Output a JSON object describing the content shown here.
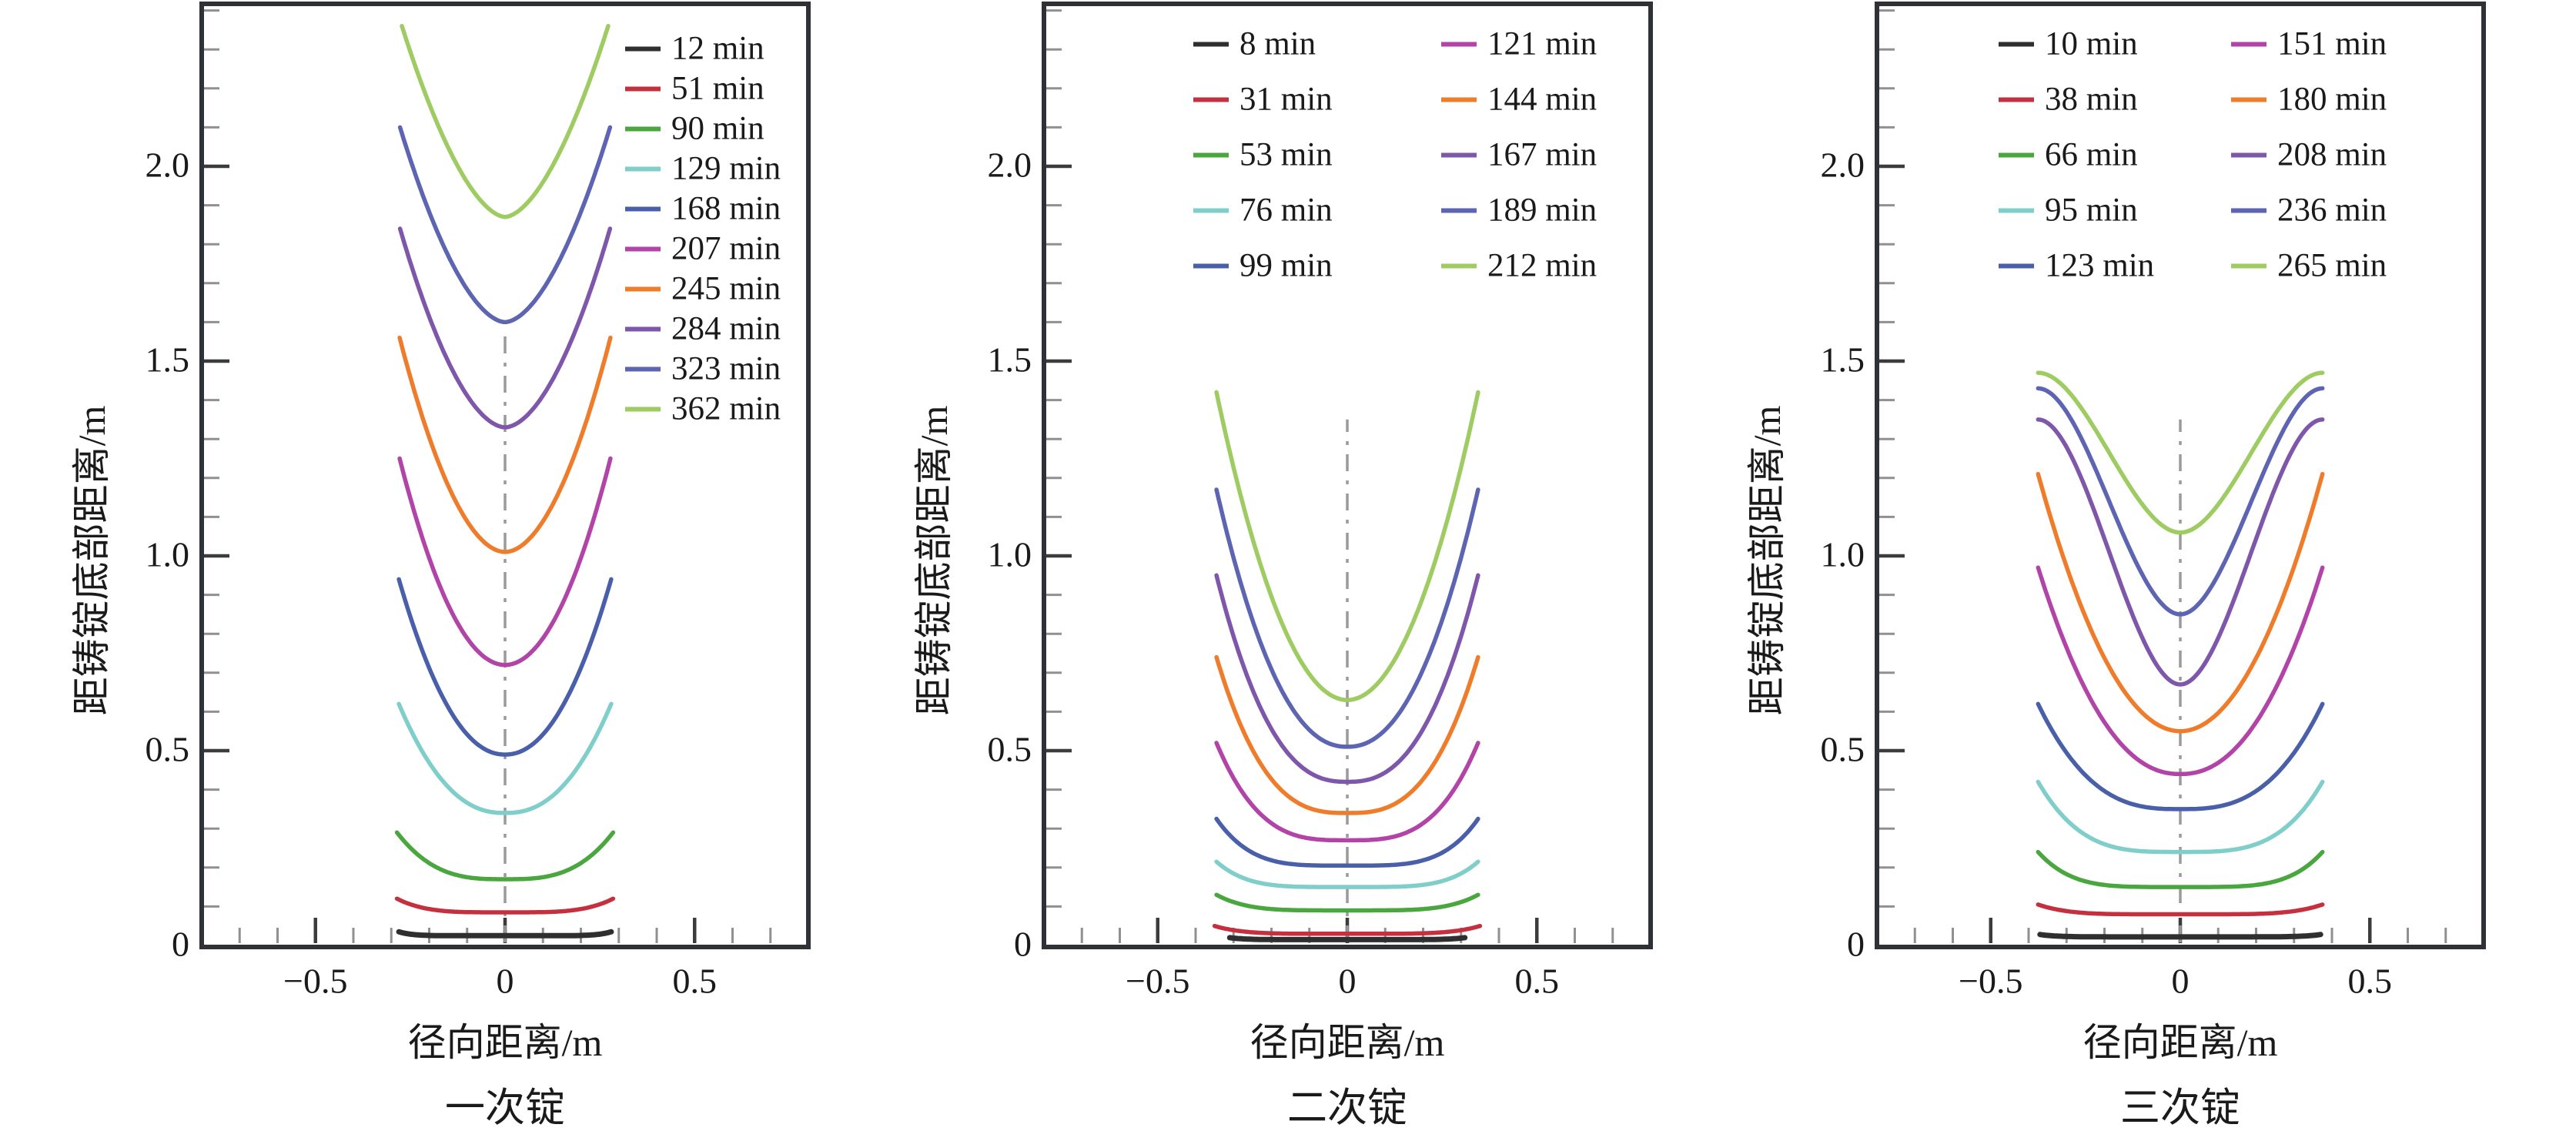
{
  "figure": {
    "background": "#ffffff",
    "frame_color": "#2e3135",
    "major_tick_color": "#3c3c3c",
    "minor_tick_color": "#909090",
    "centerline_color": "#9a9a9a",
    "text_color": "#1a1a1a"
  },
  "chart_data": [
    {
      "type": "line",
      "title": "一次锭",
      "xlabel": "径向距离/m",
      "ylabel": "距铸锭底部距离/m",
      "xlim": [
        -0.8,
        0.8
      ],
      "ylim": [
        0,
        2.42
      ],
      "grid": false,
      "legend_position": "top-right-inside",
      "legend_columns": 1,
      "xticks": {
        "major": [
          -0.5,
          0,
          0.5
        ],
        "labels": [
          "−0.5",
          "0",
          "0.5"
        ],
        "minor_step": 0.1
      },
      "yticks": {
        "major": [
          0,
          0.5,
          1.0,
          1.5,
          2.0
        ],
        "labels": [
          "0",
          "0.5",
          "1.0",
          "1.5",
          "2.0"
        ],
        "minor_step": 0.1
      },
      "centerline": {
        "style": "dash-dot",
        "x": 0,
        "from_m": 0,
        "to_m": 1.57
      },
      "series": [
        {
          "label": "12 min",
          "time_min": 12,
          "color": "#2f2f2f",
          "half_width_m": 0.28,
          "center_height_m": 0.025,
          "edge_height_m": 0.035,
          "shape": "power",
          "shape_exp": 8,
          "line_width": 7
        },
        {
          "label": "51 min",
          "time_min": 51,
          "color": "#c5303e",
          "half_width_m": 0.285,
          "center_height_m": 0.085,
          "edge_height_m": 0.12,
          "shape": "power",
          "shape_exp": 4,
          "line_width": 5.5
        },
        {
          "label": "90 min",
          "time_min": 90,
          "color": "#4aa63f",
          "half_width_m": 0.285,
          "center_height_m": 0.17,
          "edge_height_m": 0.29,
          "shape": "power",
          "shape_exp": 3,
          "line_width": 5.5
        },
        {
          "label": "129 min",
          "time_min": 129,
          "color": "#7fceca",
          "half_width_m": 0.28,
          "center_height_m": 0.34,
          "edge_height_m": 0.62,
          "shape": "power",
          "shape_exp": 2.3,
          "line_width": 5.5
        },
        {
          "label": "168 min",
          "time_min": 168,
          "color": "#4a5fa9",
          "half_width_m": 0.28,
          "center_height_m": 0.49,
          "edge_height_m": 0.94,
          "shape": "power",
          "shape_exp": 2.1,
          "line_width": 5.5
        },
        {
          "label": "207 min",
          "time_min": 207,
          "color": "#b244a8",
          "half_width_m": 0.278,
          "center_height_m": 0.72,
          "edge_height_m": 1.25,
          "shape": "power",
          "shape_exp": 2.0,
          "line_width": 5.5
        },
        {
          "label": "245 min",
          "time_min": 245,
          "color": "#ee7c2b",
          "half_width_m": 0.278,
          "center_height_m": 1.01,
          "edge_height_m": 1.56,
          "shape": "power",
          "shape_exp": 1.9,
          "line_width": 5.5
        },
        {
          "label": "284 min",
          "time_min": 284,
          "color": "#7e57ab",
          "half_width_m": 0.277,
          "center_height_m": 1.33,
          "edge_height_m": 1.84,
          "shape": "power",
          "shape_exp": 1.8,
          "line_width": 5.5
        },
        {
          "label": "323 min",
          "time_min": 323,
          "color": "#5d64b2",
          "half_width_m": 0.277,
          "center_height_m": 1.6,
          "edge_height_m": 2.1,
          "shape": "power",
          "shape_exp": 1.75,
          "line_width": 5.5
        },
        {
          "label": "362 min",
          "time_min": 362,
          "color": "#9ecb62",
          "half_width_m": 0.272,
          "center_height_m": 1.87,
          "edge_height_m": 2.36,
          "shape": "power",
          "shape_exp": 1.7,
          "line_width": 5.5
        }
      ]
    },
    {
      "type": "line",
      "title": "二次锭",
      "xlabel": "径向距离/m",
      "ylabel": "距铸锭底部距离/m",
      "xlim": [
        -0.8,
        0.8
      ],
      "ylim": [
        0,
        2.42
      ],
      "grid": false,
      "legend_position": "top-inside",
      "legend_columns": 2,
      "xticks": {
        "major": [
          -0.5,
          0,
          0.5
        ],
        "labels": [
          "−0.5",
          "0",
          "0.5"
        ],
        "minor_step": 0.1
      },
      "yticks": {
        "major": [
          0,
          0.5,
          1.0,
          1.5,
          2.0
        ],
        "labels": [
          "0",
          "0.5",
          "1.0",
          "1.5",
          "2.0"
        ],
        "minor_step": 0.1
      },
      "centerline": {
        "style": "dash-dot",
        "x": 0,
        "from_m": 0,
        "to_m": 1.35
      },
      "series": [
        {
          "label": "8 min",
          "time_min": 8,
          "color": "#2f2f2f",
          "half_width_m": 0.31,
          "center_height_m": 0.015,
          "edge_height_m": 0.02,
          "shape": "power",
          "shape_exp": 8,
          "line_width": 7
        },
        {
          "label": "31 min",
          "time_min": 31,
          "color": "#c5303e",
          "half_width_m": 0.35,
          "center_height_m": 0.03,
          "edge_height_m": 0.05,
          "shape": "power",
          "shape_exp": 5,
          "line_width": 5.5
        },
        {
          "label": "53 min",
          "time_min": 53,
          "color": "#4aa63f",
          "half_width_m": 0.345,
          "center_height_m": 0.09,
          "edge_height_m": 0.13,
          "shape": "power",
          "shape_exp": 4.5,
          "line_width": 5.5
        },
        {
          "label": "76 min",
          "time_min": 76,
          "color": "#7fceca",
          "half_width_m": 0.345,
          "center_height_m": 0.15,
          "edge_height_m": 0.215,
          "shape": "power",
          "shape_exp": 4.5,
          "line_width": 5.5
        },
        {
          "label": "99 min",
          "time_min": 99,
          "color": "#4a5fa9",
          "half_width_m": 0.345,
          "center_height_m": 0.205,
          "edge_height_m": 0.325,
          "shape": "power",
          "shape_exp": 4,
          "line_width": 5.5
        },
        {
          "label": "121 min",
          "time_min": 121,
          "color": "#b244a8",
          "half_width_m": 0.345,
          "center_height_m": 0.27,
          "edge_height_m": 0.52,
          "shape": "power",
          "shape_exp": 3.2,
          "line_width": 5.5
        },
        {
          "label": "144 min",
          "time_min": 144,
          "color": "#ee7c2b",
          "half_width_m": 0.345,
          "center_height_m": 0.34,
          "edge_height_m": 0.74,
          "shape": "power",
          "shape_exp": 2.8,
          "line_width": 5.5
        },
        {
          "label": "167 min",
          "time_min": 167,
          "color": "#7e57ab",
          "half_width_m": 0.345,
          "center_height_m": 0.42,
          "edge_height_m": 0.95,
          "shape": "power",
          "shape_exp": 2.5,
          "line_width": 5.5
        },
        {
          "label": "189 min",
          "time_min": 189,
          "color": "#5d64b2",
          "half_width_m": 0.345,
          "center_height_m": 0.51,
          "edge_height_m": 1.17,
          "shape": "power",
          "shape_exp": 2.2,
          "line_width": 5.5
        },
        {
          "label": "212 min",
          "time_min": 212,
          "color": "#9ecb62",
          "half_width_m": 0.345,
          "center_height_m": 0.63,
          "edge_height_m": 1.42,
          "shape": "power",
          "shape_exp": 2.0,
          "line_width": 5.5
        }
      ]
    },
    {
      "type": "line",
      "title": "三次锭",
      "xlabel": "径向距离/m",
      "ylabel": "距铸锭底部距离/m",
      "xlim": [
        -0.8,
        0.8
      ],
      "ylim": [
        0,
        2.42
      ],
      "grid": false,
      "legend_position": "top-inside",
      "legend_columns": 2,
      "xticks": {
        "major": [
          -0.5,
          0,
          0.5
        ],
        "labels": [
          "−0.5",
          "0",
          "0.5"
        ],
        "minor_step": 0.1
      },
      "yticks": {
        "major": [
          0,
          0.5,
          1.0,
          1.5,
          2.0
        ],
        "labels": [
          "0",
          "0.5",
          "1.0",
          "1.5",
          "2.0"
        ],
        "minor_step": 0.1
      },
      "centerline": {
        "style": "dash-dot",
        "x": 0,
        "from_m": 0,
        "to_m": 1.35
      },
      "series": [
        {
          "label": "10 min",
          "time_min": 10,
          "color": "#2f2f2f",
          "half_width_m": 0.37,
          "center_height_m": 0.022,
          "edge_height_m": 0.028,
          "shape": "power",
          "shape_exp": 8,
          "line_width": 7
        },
        {
          "label": "38 min",
          "time_min": 38,
          "color": "#c5303e",
          "half_width_m": 0.375,
          "center_height_m": 0.08,
          "edge_height_m": 0.105,
          "shape": "power",
          "shape_exp": 5,
          "line_width": 5.5
        },
        {
          "label": "66 min",
          "time_min": 66,
          "color": "#4aa63f",
          "half_width_m": 0.375,
          "center_height_m": 0.15,
          "edge_height_m": 0.24,
          "shape": "power",
          "shape_exp": 4.5,
          "line_width": 5.5
        },
        {
          "label": "95 min",
          "time_min": 95,
          "color": "#7fceca",
          "half_width_m": 0.375,
          "center_height_m": 0.24,
          "edge_height_m": 0.42,
          "shape": "power",
          "shape_exp": 3.5,
          "line_width": 5.5
        },
        {
          "label": "123 min",
          "time_min": 123,
          "color": "#4a5fa9",
          "half_width_m": 0.375,
          "center_height_m": 0.35,
          "edge_height_m": 0.62,
          "shape": "power",
          "shape_exp": 2.8,
          "line_width": 5.5
        },
        {
          "label": "151 min",
          "time_min": 151,
          "color": "#b244a8",
          "half_width_m": 0.375,
          "center_height_m": 0.44,
          "edge_height_m": 0.97,
          "shape": "power",
          "shape_exp": 2.2,
          "line_width": 5.5
        },
        {
          "label": "180 min",
          "time_min": 180,
          "color": "#ee7c2b",
          "half_width_m": 0.375,
          "center_height_m": 0.55,
          "edge_height_m": 1.21,
          "shape": "power",
          "shape_exp": 2.0,
          "line_width": 5.5
        },
        {
          "label": "208 min",
          "time_min": 208,
          "color": "#7e57ab",
          "half_width_m": 0.375,
          "center_height_m": 0.67,
          "edge_height_m": 1.35,
          "shape": "smoothstep",
          "shape_exp": 0,
          "line_width": 5.5
        },
        {
          "label": "236 min",
          "time_min": 236,
          "color": "#5d64b2",
          "half_width_m": 0.375,
          "center_height_m": 0.85,
          "edge_height_m": 1.43,
          "shape": "smoothstep",
          "shape_exp": 0,
          "line_width": 5.5
        },
        {
          "label": "265 min",
          "time_min": 265,
          "color": "#9ecb62",
          "half_width_m": 0.375,
          "center_height_m": 1.06,
          "edge_height_m": 1.47,
          "shape": "smoothstep",
          "shape_exp": 0,
          "line_width": 5.5
        }
      ]
    }
  ]
}
